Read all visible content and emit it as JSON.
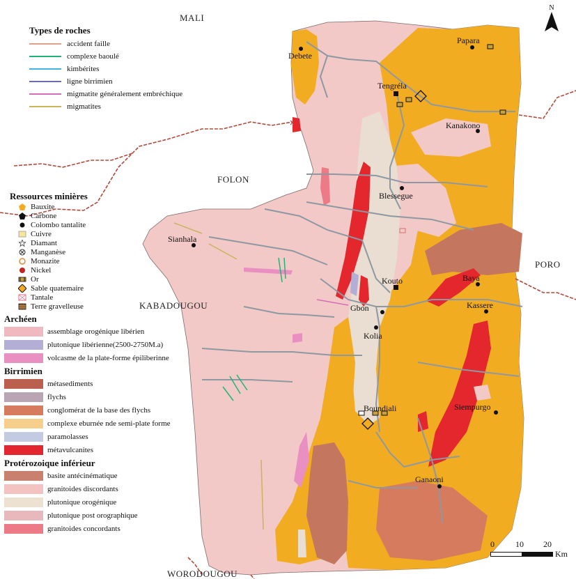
{
  "regions": {
    "mali": "MALI",
    "folon": "FOLON",
    "kabadougou": "KABADOUGOU",
    "poro": "PORO",
    "worodougou": "WORODOUGOU"
  },
  "towns": [
    {
      "name": "Debete"
    },
    {
      "name": "Papara"
    },
    {
      "name": "Tengréla"
    },
    {
      "name": "Kanakono"
    },
    {
      "name": "Blessegue"
    },
    {
      "name": "Sianhala"
    },
    {
      "name": "Kouto"
    },
    {
      "name": "Baya"
    },
    {
      "name": "Gbon"
    },
    {
      "name": "Kassere"
    },
    {
      "name": "Kolia"
    },
    {
      "name": "Siempurgo"
    },
    {
      "name": "Boundiali"
    },
    {
      "name": "Ganaoni"
    }
  ],
  "north_label": "N",
  "scale": {
    "ticks": [
      "0",
      "10",
      "20"
    ],
    "unit": "Km"
  },
  "legend_rocks": {
    "title": "Types de roches",
    "items": [
      {
        "label": "accident faille",
        "color": "#e0a08a"
      },
      {
        "label": "complexe baoulé",
        "color": "#1fb57a"
      },
      {
        "label": "kimbérites",
        "color": "#3fb3e6"
      },
      {
        "label": "ligne birrimien",
        "color": "#6a6ab0"
      },
      {
        "label": "migmatite généralement embréchique",
        "color": "#d36fb8"
      },
      {
        "label": "migmatites",
        "color": "#c9b45a"
      }
    ]
  },
  "legend_resources": {
    "title": "Ressources minières",
    "items": [
      {
        "label": "Bauxite",
        "icon": "pentagon-orange-icon"
      },
      {
        "label": "Carbone",
        "icon": "pentagon-black-icon"
      },
      {
        "label": "Colombo tantalite",
        "icon": "dot-black-icon"
      },
      {
        "label": "Cuivre",
        "icon": "square-yellow-icon"
      },
      {
        "label": "Diamant",
        "icon": "star-icon"
      },
      {
        "label": "Manganèse",
        "icon": "circle-cross-icon"
      },
      {
        "label": "Monazite",
        "icon": "octagon-orange-icon"
      },
      {
        "label": "Nickel",
        "icon": "dot-red-icon"
      },
      {
        "label": "Or",
        "icon": "gold-mine-icon"
      },
      {
        "label": "Sable quatemaire",
        "icon": "diamond-orange-icon"
      },
      {
        "label": "Tantale",
        "icon": "envelope-pink-icon"
      },
      {
        "label": "Terre gravelleuse",
        "icon": "gravel-icon"
      }
    ]
  },
  "legend_geology": [
    {
      "title": "Archéen",
      "items": [
        {
          "label": "assemblage orogénique libérien",
          "color": "#f0b8bf"
        },
        {
          "label": "plutonique libérienne(2500-2750M.a)",
          "color": "#b3aed6"
        },
        {
          "label": "volcasme de la plate-forme épiliberinne",
          "color": "#e98fc2"
        }
      ]
    },
    {
      "title": "Birrimien",
      "items": [
        {
          "label": "métasediments",
          "color": "#bb5f4e"
        },
        {
          "label": "flychs",
          "color": "#b9a5b3"
        },
        {
          "label": "conglomérat de la base des flychs",
          "color": "#d67b5e"
        },
        {
          "label": "complexe eburnée nde semi-plate forme",
          "color": "#f6cf8c"
        },
        {
          "label": "paramolasses",
          "color": "#c3cbe3"
        },
        {
          "label": "métavulcanites",
          "color": "#e32530"
        }
      ]
    },
    {
      "title": "Protérozoique inférieur",
      "items": [
        {
          "label": "basite antécinématique",
          "color": "#c9806f"
        },
        {
          "label": "granitoides discordants",
          "color": "#f3c3c1"
        },
        {
          "label": "plutonique orogénique",
          "color": "#ede1d1"
        },
        {
          "label": "plutonique post orographique",
          "color": "#e7b9bd"
        },
        {
          "label": "granitoides concordants",
          "color": "#ec7a87"
        }
      ]
    }
  ],
  "colors": {
    "orange": "#f2ac22",
    "pink": "#f2c9c7",
    "cream": "#e9ded1",
    "red": "#e4262d",
    "brown": "#c4775e",
    "border": "#b04a3a",
    "road": "#8d98a3"
  }
}
